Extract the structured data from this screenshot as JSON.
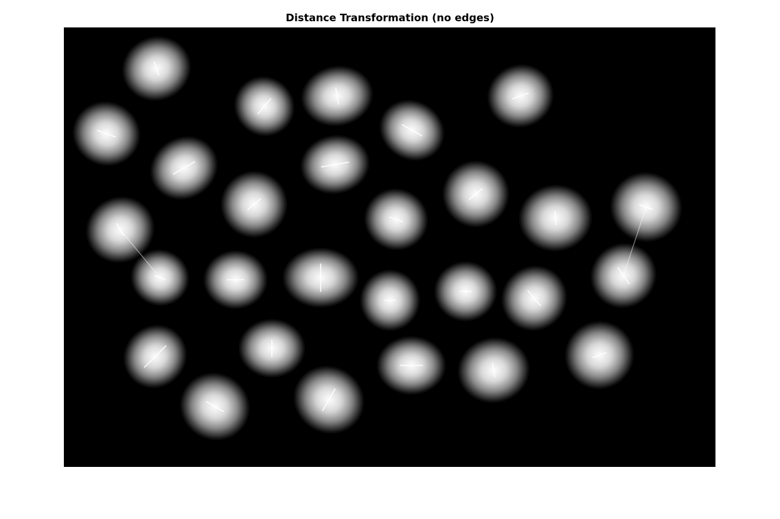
{
  "figure": {
    "title": "Distance Transformation (no edges)"
  },
  "image": {
    "description_colormap": "gray",
    "background_color": "#000000",
    "blob_color": "#ffffff"
  }
}
